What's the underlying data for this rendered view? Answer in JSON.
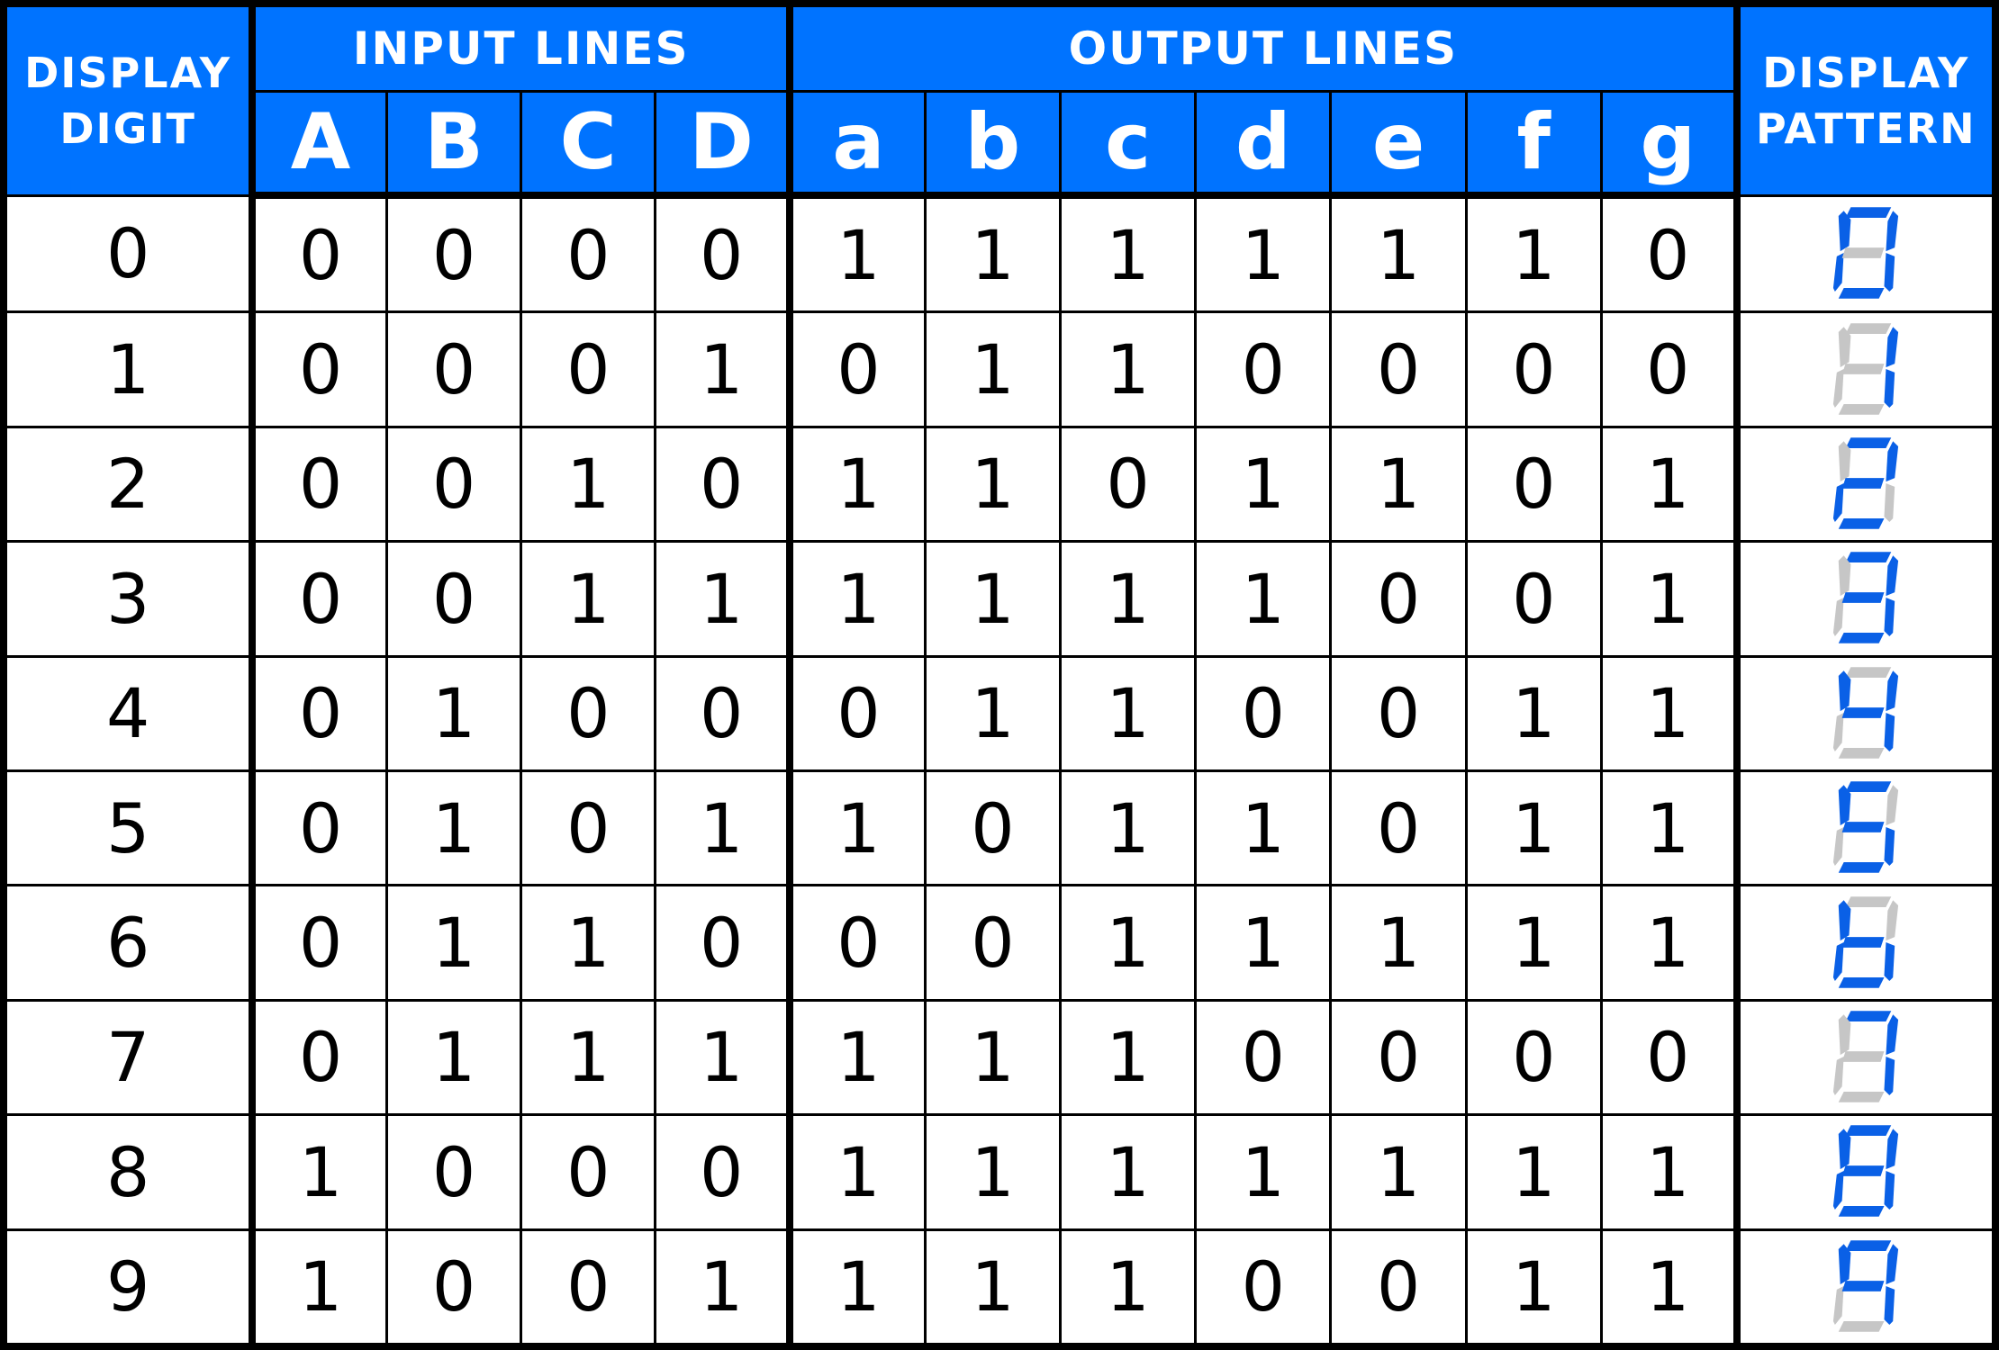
{
  "headers": {
    "display_digit": [
      "DISPLAY",
      "DIGIT"
    ],
    "input_lines": "INPUT LINES",
    "output_lines": "OUTPUT LINES",
    "display_pattern": [
      "DISPLAY",
      "PATTERN"
    ],
    "inputs": [
      "A",
      "B",
      "C",
      "D"
    ],
    "outputs": [
      "a",
      "b",
      "c",
      "d",
      "e",
      "f",
      "g"
    ]
  },
  "colors": {
    "header_bg": "#0073ff",
    "segment_on": "#0a60e6",
    "segment_off": "#c6c6c6"
  },
  "rows": [
    {
      "digit": "0",
      "inputs": [
        "0",
        "0",
        "0",
        "0"
      ],
      "outputs": [
        "1",
        "1",
        "1",
        "1",
        "1",
        "1",
        "0"
      ]
    },
    {
      "digit": "1",
      "inputs": [
        "0",
        "0",
        "0",
        "1"
      ],
      "outputs": [
        "0",
        "1",
        "1",
        "0",
        "0",
        "0",
        "0"
      ]
    },
    {
      "digit": "2",
      "inputs": [
        "0",
        "0",
        "1",
        "0"
      ],
      "outputs": [
        "1",
        "1",
        "0",
        "1",
        "1",
        "0",
        "1"
      ]
    },
    {
      "digit": "3",
      "inputs": [
        "0",
        "0",
        "1",
        "1"
      ],
      "outputs": [
        "1",
        "1",
        "1",
        "1",
        "0",
        "0",
        "1"
      ]
    },
    {
      "digit": "4",
      "inputs": [
        "0",
        "1",
        "0",
        "0"
      ],
      "outputs": [
        "0",
        "1",
        "1",
        "0",
        "0",
        "1",
        "1"
      ]
    },
    {
      "digit": "5",
      "inputs": [
        "0",
        "1",
        "0",
        "1"
      ],
      "outputs": [
        "1",
        "0",
        "1",
        "1",
        "0",
        "1",
        "1"
      ]
    },
    {
      "digit": "6",
      "inputs": [
        "0",
        "1",
        "1",
        "0"
      ],
      "outputs": [
        "0",
        "0",
        "1",
        "1",
        "1",
        "1",
        "1"
      ]
    },
    {
      "digit": "7",
      "inputs": [
        "0",
        "1",
        "1",
        "1"
      ],
      "outputs": [
        "1",
        "1",
        "1",
        "0",
        "0",
        "0",
        "0"
      ]
    },
    {
      "digit": "8",
      "inputs": [
        "1",
        "0",
        "0",
        "0"
      ],
      "outputs": [
        "1",
        "1",
        "1",
        "1",
        "1",
        "1",
        "1"
      ]
    },
    {
      "digit": "9",
      "inputs": [
        "1",
        "0",
        "0",
        "1"
      ],
      "outputs": [
        "1",
        "1",
        "1",
        "0",
        "0",
        "1",
        "1"
      ]
    }
  ]
}
